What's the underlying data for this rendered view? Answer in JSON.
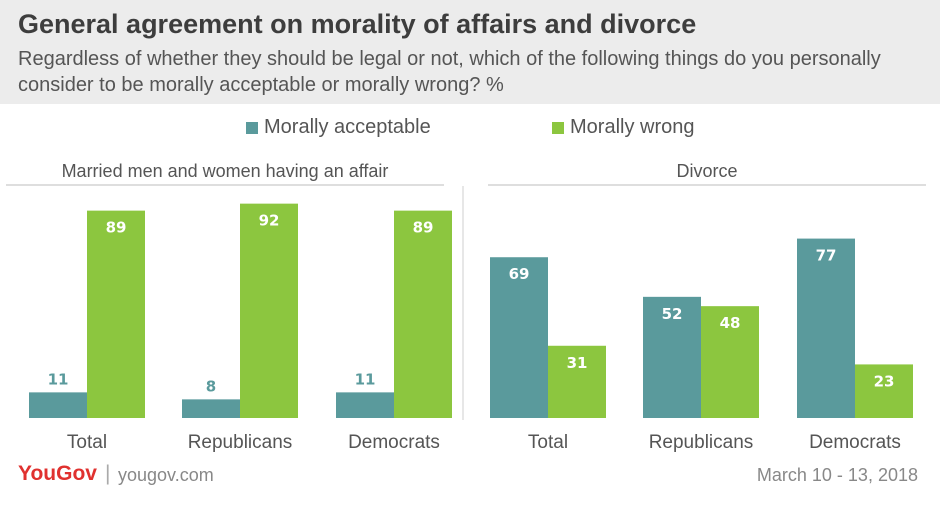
{
  "header": {
    "title": "General agreement on morality of affairs and divorce",
    "subtitle": "Regardless of whether they should be legal or not, which of the following things do you personally consider to be morally acceptable or morally wrong? %"
  },
  "legend": {
    "acceptable_label": "Morally acceptable",
    "wrong_label": "Morally wrong"
  },
  "colors": {
    "acceptable": "#5a9a9c",
    "wrong": "#8cc63f",
    "header_bg": "#ececec",
    "brand": "#e0312f"
  },
  "chart_data": [
    {
      "type": "bar",
      "title": "Married men and women having an affair",
      "categories": [
        "Total",
        "Republicans",
        "Democrats"
      ],
      "series": [
        {
          "name": "Morally acceptable",
          "values": [
            11,
            8,
            11
          ]
        },
        {
          "name": "Morally wrong",
          "values": [
            89,
            92,
            89
          ]
        }
      ],
      "ylim": [
        0,
        100
      ],
      "grid": false
    },
    {
      "type": "bar",
      "title": "Divorce",
      "categories": [
        "Total",
        "Republicans",
        "Democrats"
      ],
      "series": [
        {
          "name": "Morally acceptable",
          "values": [
            69,
            52,
            77
          ]
        },
        {
          "name": "Morally wrong",
          "values": [
            31,
            48,
            23
          ]
        }
      ],
      "ylim": [
        0,
        100
      ],
      "grid": false
    }
  ],
  "footer": {
    "brand": "YouGov",
    "separator": "|",
    "url": "yougov.com",
    "date": "March 10 - 13, 2018"
  }
}
